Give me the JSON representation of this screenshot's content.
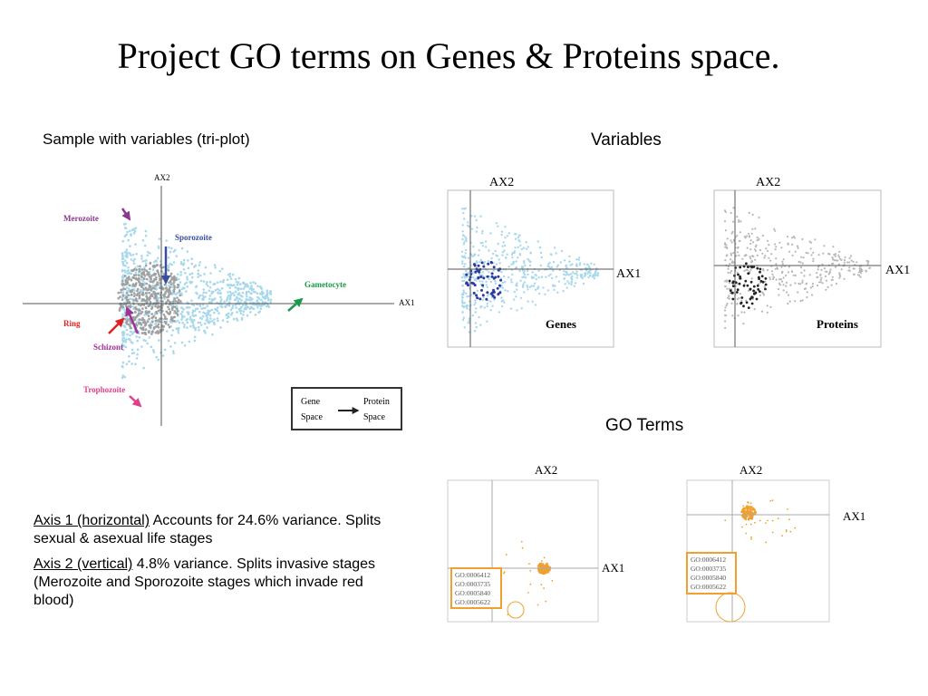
{
  "title": "Project GO terms on Genes & Proteins  space.",
  "triplot": {
    "heading": "Sample with variables (tri-plot)",
    "axis_y": "AX2",
    "axis_x": "AX1",
    "stages": [
      "Merozoite",
      "Sporozoite",
      "Gametocyte",
      "Ring",
      "Schizont",
      "Trophozoite"
    ],
    "legend": {
      "from": [
        "Gene",
        "Space"
      ],
      "to": [
        "Protein",
        "Space"
      ]
    }
  },
  "variables": {
    "heading": "Variables",
    "plots": [
      {
        "axis_y": "AX2",
        "axis_x": "AX1",
        "label": "Genes"
      },
      {
        "axis_y": "AX2",
        "axis_x": "AX1",
        "label": "Proteins"
      }
    ]
  },
  "go_terms": {
    "heading": "GO Terms",
    "plots": [
      {
        "axis_y": "AX2",
        "axis_x": "AX1",
        "ids": [
          "GO:0006412",
          "GO:0003735",
          "GO:0005840",
          "GO:0005622"
        ]
      },
      {
        "axis_y": "AX2",
        "axis_x": "AX1",
        "ids": [
          "GO:0006412",
          "GO:0003735",
          "GO:0005840",
          "GO:0005622"
        ]
      }
    ]
  },
  "notes": [
    {
      "label": "Axis 1 (horizontal)",
      "text": " Accounts for 24.6% variance. Splits sexual & asexual life stages"
    },
    {
      "label": "Axis 2 (vertical)",
      "text": " 4.8% variance. Splits invasive stages (Merozoite and Sporozoite stages which invade red blood)"
    }
  ]
}
